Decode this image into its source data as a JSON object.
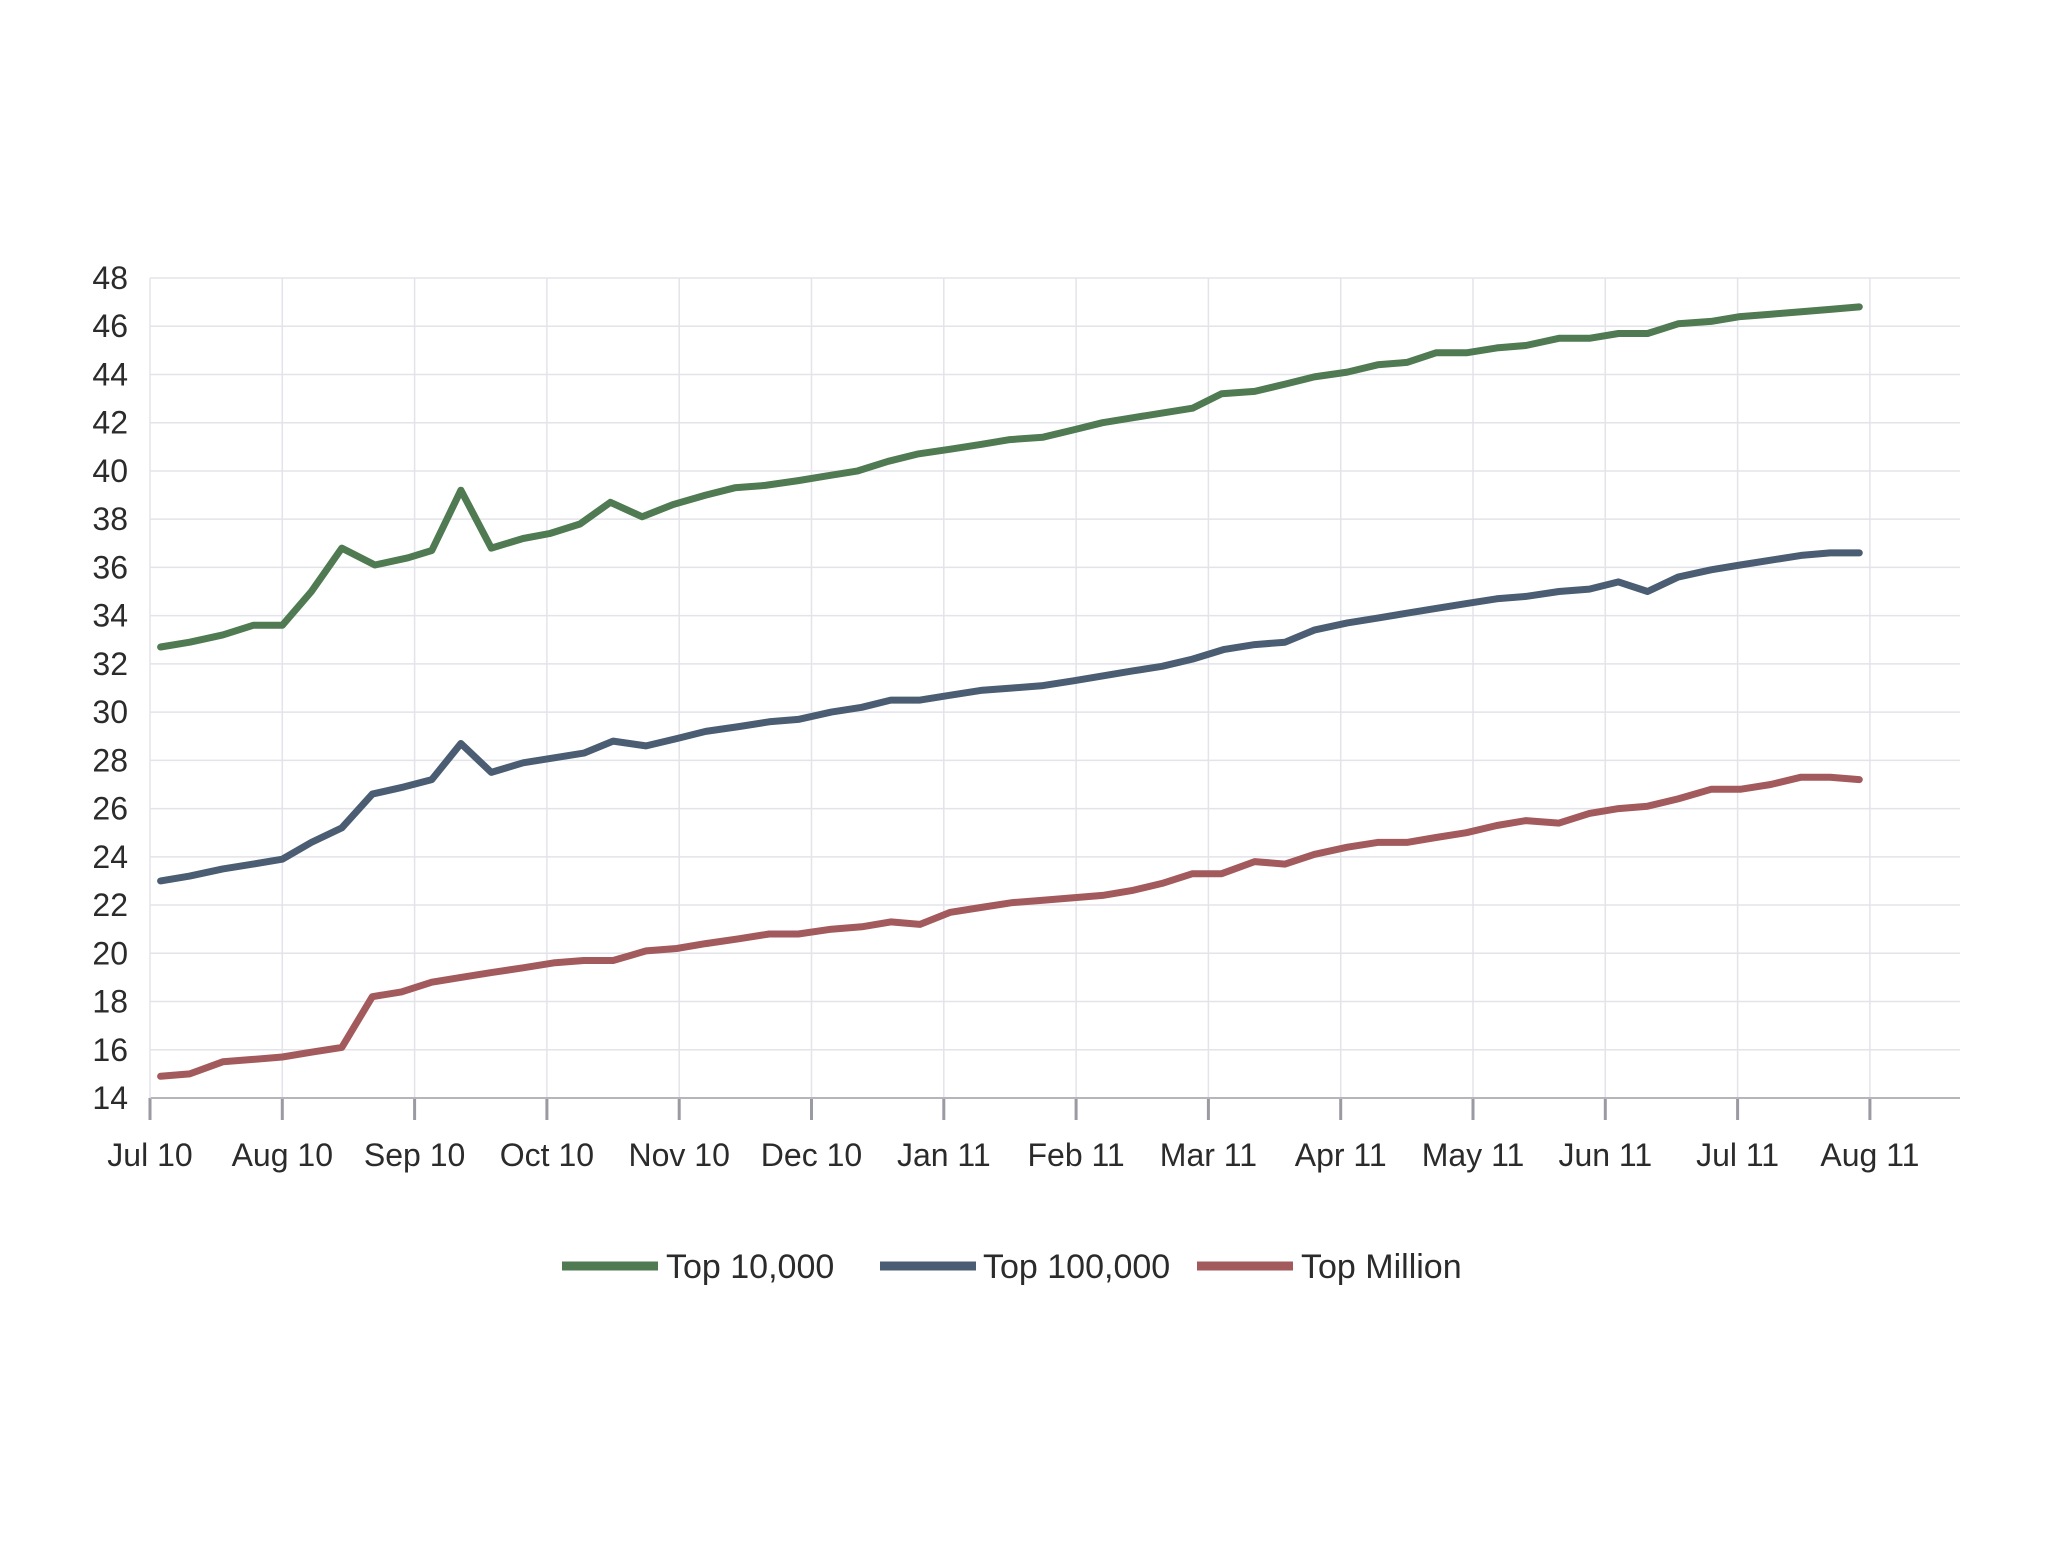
{
  "chart_data": {
    "type": "line",
    "title": "",
    "xlabel": "",
    "ylabel": "",
    "ylim": [
      14,
      48
    ],
    "y_ticks": [
      14,
      16,
      18,
      20,
      22,
      24,
      26,
      28,
      30,
      32,
      34,
      36,
      38,
      40,
      42,
      44,
      46,
      48
    ],
    "x_tick_labels": [
      "Jul 10",
      "Aug 10",
      "Sep 10",
      "Oct 10",
      "Nov 10",
      "Dec 10",
      "Jan 11",
      "Feb 11",
      "Mar 11",
      "Apr 11",
      "May 11",
      "Jun 11",
      "Jul 11",
      "Aug 11"
    ],
    "grid": true,
    "legend_position": "bottom",
    "x_unit": "months since Jul 10",
    "series": [
      {
        "name": "Top 10,000",
        "color": "#4f7a52",
        "points": [
          [
            0.08,
            32.7
          ],
          [
            0.3,
            32.9
          ],
          [
            0.55,
            33.2
          ],
          [
            0.78,
            33.6
          ],
          [
            1.0,
            33.6
          ],
          [
            1.22,
            35.0
          ],
          [
            1.45,
            36.8
          ],
          [
            1.7,
            36.1
          ],
          [
            1.95,
            36.4
          ],
          [
            2.13,
            36.7
          ],
          [
            2.35,
            39.2
          ],
          [
            2.58,
            36.8
          ],
          [
            2.82,
            37.2
          ],
          [
            3.02,
            37.4
          ],
          [
            3.25,
            37.8
          ],
          [
            3.48,
            38.7
          ],
          [
            3.72,
            38.1
          ],
          [
            3.95,
            38.6
          ],
          [
            4.2,
            39.0
          ],
          [
            4.42,
            39.3
          ],
          [
            4.65,
            39.4
          ],
          [
            4.9,
            39.6
          ],
          [
            5.12,
            39.8
          ],
          [
            5.35,
            40.0
          ],
          [
            5.58,
            40.4
          ],
          [
            5.8,
            40.7
          ],
          [
            6.05,
            40.9
          ],
          [
            6.28,
            41.1
          ],
          [
            6.5,
            41.3
          ],
          [
            6.75,
            41.4
          ],
          [
            6.98,
            41.7
          ],
          [
            7.2,
            42.0
          ],
          [
            7.42,
            42.2
          ],
          [
            7.65,
            42.4
          ],
          [
            7.88,
            42.6
          ],
          [
            8.1,
            43.2
          ],
          [
            8.35,
            43.3
          ],
          [
            8.58,
            43.6
          ],
          [
            8.8,
            43.9
          ],
          [
            9.05,
            44.1
          ],
          [
            9.28,
            44.4
          ],
          [
            9.5,
            44.5
          ],
          [
            9.72,
            44.9
          ],
          [
            9.95,
            44.9
          ],
          [
            10.18,
            45.1
          ],
          [
            10.4,
            45.2
          ],
          [
            10.65,
            45.5
          ],
          [
            10.88,
            45.5
          ],
          [
            11.1,
            45.7
          ],
          [
            11.32,
            45.7
          ],
          [
            11.55,
            46.1
          ],
          [
            11.8,
            46.2
          ],
          [
            12.02,
            46.4
          ],
          [
            12.25,
            46.5
          ],
          [
            12.48,
            46.6
          ],
          [
            12.7,
            46.7
          ],
          [
            12.92,
            46.8
          ]
        ]
      },
      {
        "name": "Top 100,000",
        "color": "#4b5d72",
        "points": [
          [
            0.08,
            23.0
          ],
          [
            0.3,
            23.2
          ],
          [
            0.55,
            23.5
          ],
          [
            0.78,
            23.7
          ],
          [
            1.0,
            23.9
          ],
          [
            1.22,
            24.6
          ],
          [
            1.45,
            25.2
          ],
          [
            1.68,
            26.6
          ],
          [
            1.92,
            26.9
          ],
          [
            2.13,
            27.2
          ],
          [
            2.35,
            28.7
          ],
          [
            2.58,
            27.5
          ],
          [
            2.82,
            27.9
          ],
          [
            3.05,
            28.1
          ],
          [
            3.28,
            28.3
          ],
          [
            3.5,
            28.8
          ],
          [
            3.75,
            28.6
          ],
          [
            3.98,
            28.9
          ],
          [
            4.2,
            29.2
          ],
          [
            4.45,
            29.4
          ],
          [
            4.68,
            29.6
          ],
          [
            4.9,
            29.7
          ],
          [
            5.15,
            30.0
          ],
          [
            5.38,
            30.2
          ],
          [
            5.6,
            30.5
          ],
          [
            5.82,
            30.5
          ],
          [
            6.05,
            30.7
          ],
          [
            6.28,
            30.9
          ],
          [
            6.52,
            31.0
          ],
          [
            6.75,
            31.1
          ],
          [
            6.98,
            31.3
          ],
          [
            7.2,
            31.5
          ],
          [
            7.42,
            31.7
          ],
          [
            7.65,
            31.9
          ],
          [
            7.88,
            32.2
          ],
          [
            8.12,
            32.6
          ],
          [
            8.35,
            32.8
          ],
          [
            8.58,
            32.9
          ],
          [
            8.8,
            33.4
          ],
          [
            9.05,
            33.7
          ],
          [
            9.28,
            33.9
          ],
          [
            9.5,
            34.1
          ],
          [
            9.72,
            34.3
          ],
          [
            9.95,
            34.5
          ],
          [
            10.18,
            34.7
          ],
          [
            10.4,
            34.8
          ],
          [
            10.65,
            35.0
          ],
          [
            10.88,
            35.1
          ],
          [
            11.1,
            35.4
          ],
          [
            11.32,
            35.0
          ],
          [
            11.55,
            35.6
          ],
          [
            11.8,
            35.9
          ],
          [
            12.02,
            36.1
          ],
          [
            12.25,
            36.3
          ],
          [
            12.48,
            36.5
          ],
          [
            12.7,
            36.6
          ],
          [
            12.92,
            36.6
          ]
        ]
      },
      {
        "name": "Top Million",
        "color": "#a35a5c",
        "points": [
          [
            0.08,
            14.9
          ],
          [
            0.3,
            15.0
          ],
          [
            0.55,
            15.5
          ],
          [
            0.78,
            15.6
          ],
          [
            1.0,
            15.7
          ],
          [
            1.22,
            15.9
          ],
          [
            1.45,
            16.1
          ],
          [
            1.68,
            18.2
          ],
          [
            1.9,
            18.4
          ],
          [
            2.13,
            18.8
          ],
          [
            2.35,
            19.0
          ],
          [
            2.58,
            19.2
          ],
          [
            2.82,
            19.4
          ],
          [
            3.05,
            19.6
          ],
          [
            3.28,
            19.7
          ],
          [
            3.5,
            19.7
          ],
          [
            3.75,
            20.1
          ],
          [
            3.98,
            20.2
          ],
          [
            4.2,
            20.4
          ],
          [
            4.45,
            20.6
          ],
          [
            4.68,
            20.8
          ],
          [
            4.9,
            20.8
          ],
          [
            5.15,
            21.0
          ],
          [
            5.38,
            21.1
          ],
          [
            5.6,
            21.3
          ],
          [
            5.82,
            21.2
          ],
          [
            6.05,
            21.7
          ],
          [
            6.28,
            21.9
          ],
          [
            6.52,
            22.1
          ],
          [
            6.75,
            22.2
          ],
          [
            6.98,
            22.3
          ],
          [
            7.2,
            22.4
          ],
          [
            7.42,
            22.6
          ],
          [
            7.65,
            22.9
          ],
          [
            7.88,
            23.3
          ],
          [
            8.1,
            23.3
          ],
          [
            8.35,
            23.8
          ],
          [
            8.58,
            23.7
          ],
          [
            8.8,
            24.1
          ],
          [
            9.05,
            24.4
          ],
          [
            9.28,
            24.6
          ],
          [
            9.5,
            24.6
          ],
          [
            9.72,
            24.8
          ],
          [
            9.95,
            25.0
          ],
          [
            10.18,
            25.3
          ],
          [
            10.4,
            25.5
          ],
          [
            10.65,
            25.4
          ],
          [
            10.88,
            25.8
          ],
          [
            11.1,
            26.0
          ],
          [
            11.32,
            26.1
          ],
          [
            11.55,
            26.4
          ],
          [
            11.8,
            26.8
          ],
          [
            12.02,
            26.8
          ],
          [
            12.25,
            27.0
          ],
          [
            12.48,
            27.3
          ],
          [
            12.7,
            27.3
          ],
          [
            12.92,
            27.2
          ]
        ]
      }
    ]
  }
}
